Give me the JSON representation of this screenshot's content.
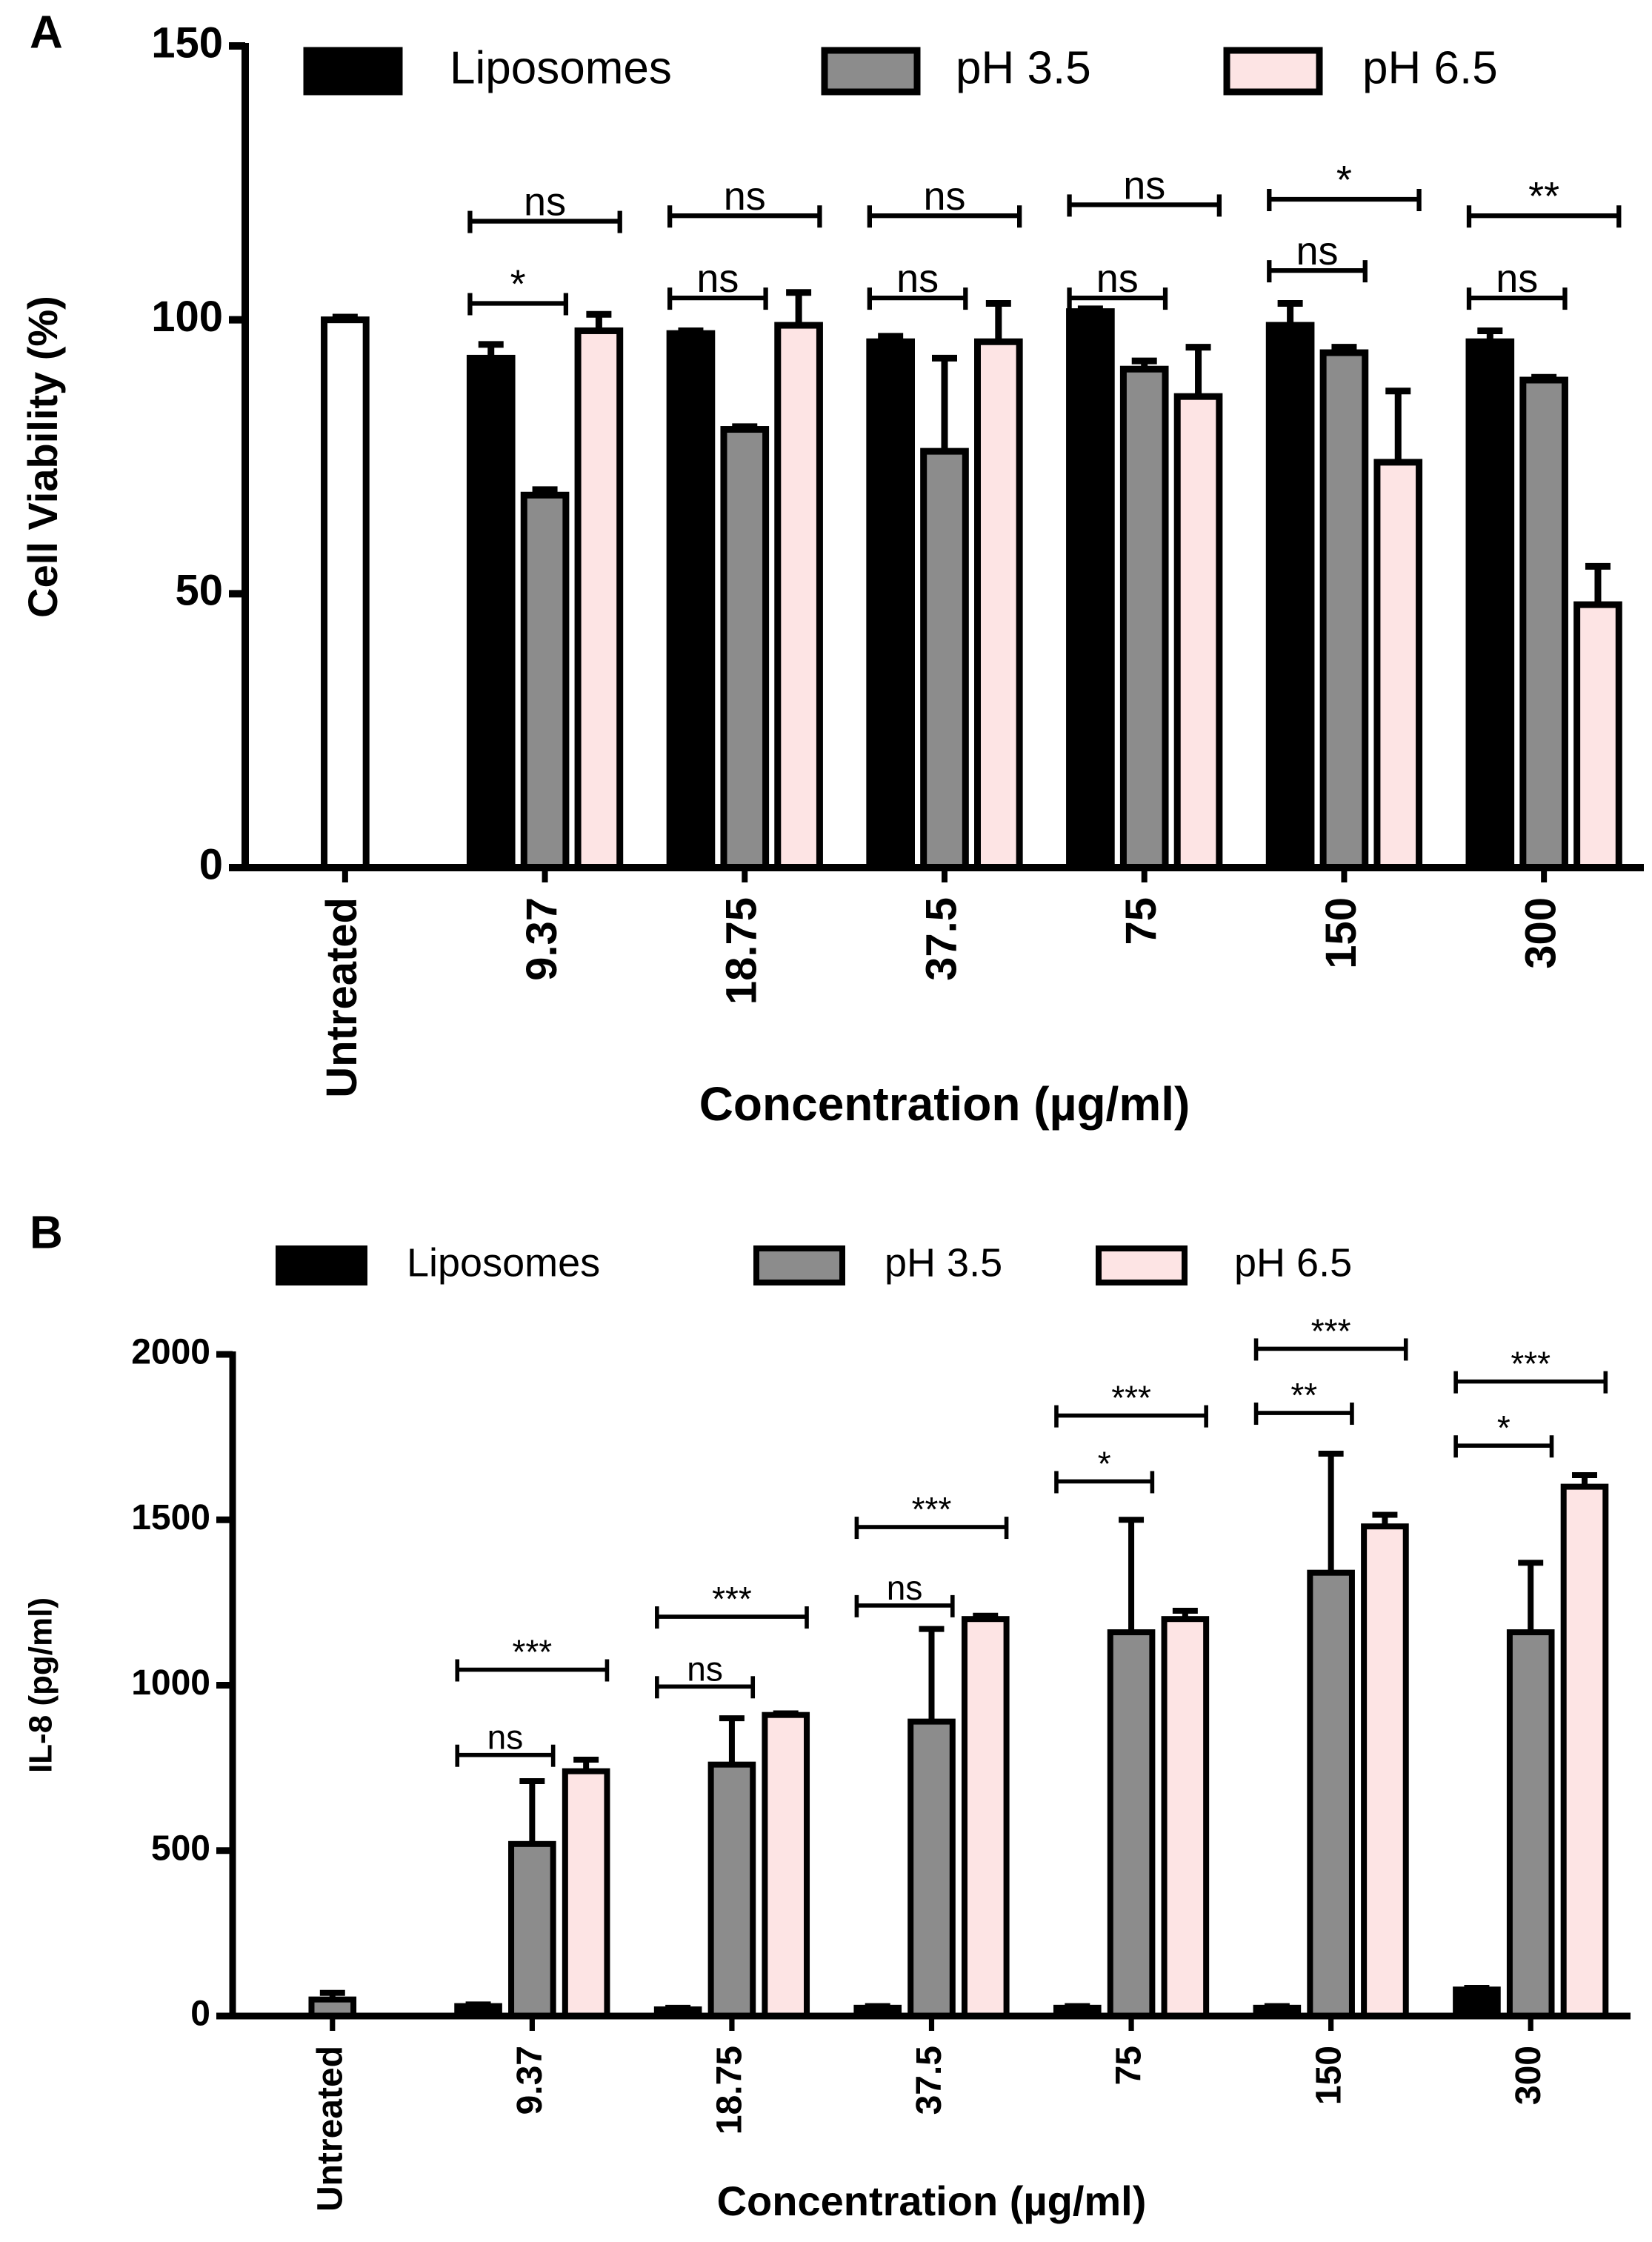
{
  "chart_data": [
    {
      "type": "bar",
      "panel": "A",
      "xlabel": "Concentration (µg/ml)",
      "ylabel": "Cell Viability (%)",
      "categories": [
        "Untreated",
        "9.37",
        "18.75",
        "37.5",
        "75",
        "150",
        "300"
      ],
      "control": {
        "value": 100,
        "error": 0.5,
        "color": "#ffffff"
      },
      "series": [
        {
          "name": "Liposomes",
          "color": "#000000",
          "values": [
            null,
            93,
            97.5,
            96,
            101.5,
            99,
            96
          ],
          "errors": [
            null,
            2.5,
            0.5,
            1,
            0.5,
            4,
            2
          ]
        },
        {
          "name": "pH 3.5",
          "color": "#8c8c8c",
          "values": [
            null,
            68,
            80,
            76,
            91,
            94,
            89
          ],
          "errors": [
            null,
            1,
            0.5,
            17,
            1.5,
            1,
            0.5
          ]
        },
        {
          "name": "pH 6.5",
          "color": "#fde4e4",
          "values": [
            null,
            98,
            99,
            96,
            86,
            74,
            48
          ],
          "errors": [
            null,
            3,
            6,
            7,
            9,
            13,
            7
          ]
        }
      ],
      "significance": [
        null,
        [
          {
            "text": "*",
            "y": 103
          },
          {
            "text": "ns",
            "y": 118
          }
        ],
        [
          {
            "text": "ns",
            "y": 104
          },
          {
            "text": "ns",
            "y": 119
          }
        ],
        [
          {
            "text": "ns",
            "y": 104
          },
          {
            "text": "ns",
            "y": 119
          }
        ],
        [
          {
            "text": "ns",
            "y": 104
          },
          {
            "text": "ns",
            "y": 121
          }
        ],
        [
          {
            "text": "ns",
            "y": 109
          },
          {
            "text": "*",
            "y": 122
          }
        ],
        [
          {
            "text": "ns",
            "y": 104
          },
          {
            "text": "**",
            "y": 119
          }
        ]
      ],
      "ylim": [
        0,
        150
      ],
      "yticks": [
        0,
        50,
        100,
        150
      ],
      "legend": "top"
    },
    {
      "type": "bar",
      "panel": "B",
      "xlabel": "Concentration (µg/ml)",
      "ylabel": "IL-8 (pg/ml)",
      "categories": [
        "Untreated",
        "9.37",
        "18.75",
        "37.5",
        "75",
        "150",
        "300"
      ],
      "control": {
        "value": 50,
        "error": 20,
        "color": "#8c8c8c"
      },
      "series": [
        {
          "name": "Liposomes",
          "color": "#000000",
          "values": [
            null,
            30,
            20,
            25,
            25,
            25,
            80
          ],
          "errors": [
            null,
            5,
            5,
            5,
            5,
            5,
            5
          ]
        },
        {
          "name": "pH 3.5",
          "color": "#8c8c8c",
          "values": [
            null,
            520,
            760,
            890,
            1160,
            1340,
            1160
          ],
          "errors": [
            null,
            190,
            140,
            280,
            340,
            360,
            210
          ]
        },
        {
          "name": "pH 6.5",
          "color": "#fde4e4",
          "values": [
            null,
            740,
            910,
            1200,
            1200,
            1480,
            1600
          ],
          "errors": [
            null,
            35,
            5,
            10,
            25,
            35,
            35
          ]
        }
      ],
      "significance": [
        null,
        [
          {
            "text": "ns",
            "y": 789
          },
          {
            "text": "***",
            "y": 1047
          }
        ],
        [
          {
            "text": "ns",
            "y": 996
          },
          {
            "text": "***",
            "y": 1207
          }
        ],
        [
          {
            "text": "ns",
            "y": 1241
          },
          {
            "text": "***",
            "y": 1478
          }
        ],
        [
          {
            "text": "*",
            "y": 1616
          },
          {
            "text": "***",
            "y": 1815
          }
        ],
        [
          {
            "text": "**",
            "y": 1823
          },
          {
            "text": "***",
            "y": 2017
          }
        ],
        [
          {
            "text": "*",
            "y": 1724
          },
          {
            "text": "***",
            "y": 1918
          }
        ]
      ],
      "ylim": [
        0,
        2000
      ],
      "yticks": [
        0,
        500,
        1000,
        1500,
        2000
      ],
      "legend": "top"
    }
  ]
}
